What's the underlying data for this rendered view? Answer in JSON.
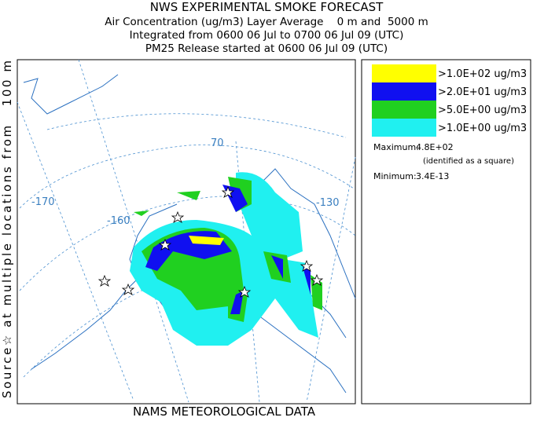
{
  "header": {
    "title": "NWS EXPERIMENTAL SMOKE FORECAST",
    "lines": [
      "Air Concentration (ug/m3) Layer Average    0 m and  5000 m",
      "Integrated from 0600 06 Jul to 0700 06 Jul 09 (UTC)",
      "PM25 Release started at 0600 06 Jul 09 (UTC)"
    ]
  },
  "side_label": "Source☆ at multiple locations from   100 m",
  "map": {
    "graticule_labels": [
      "-170",
      "-160",
      "70",
      "-130"
    ]
  },
  "legend": {
    "entries": [
      {
        "label": ">1.0E+02 ug/m3",
        "color": "#ffff00"
      },
      {
        "label": ">2.0E+01 ug/m3",
        "color": "#1010f0"
      },
      {
        "label": ">5.0E+00 ug/m3",
        "color": "#20d020"
      },
      {
        "label": ">1.0E+00 ug/m3",
        "color": "#20f0f0"
      }
    ],
    "maximum_label": "Maximum:",
    "maximum": "4.8E+02",
    "maximum_note": "(identified as a square)",
    "minimum_label": "Minimum:",
    "minimum": "3.4E-13"
  },
  "footer": "NAMS METEOROLOGICAL DATA"
}
